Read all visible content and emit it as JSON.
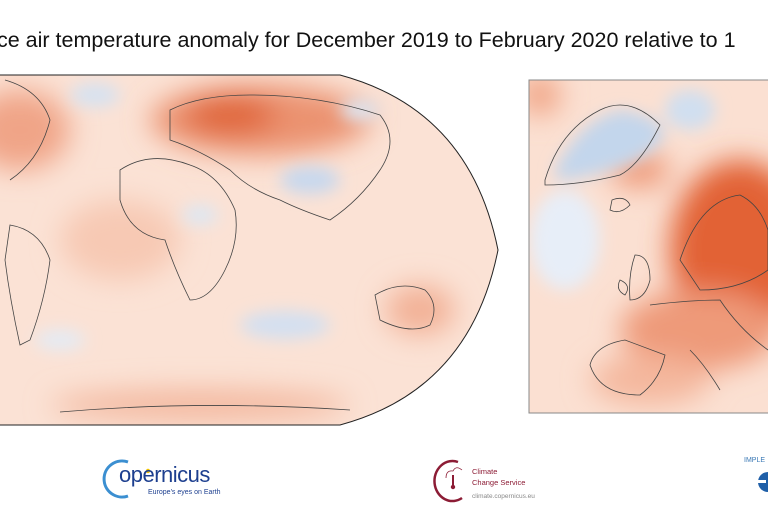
{
  "title": "ce air temperature anomaly for December 2019 to February 2020 relative to 1",
  "maps": {
    "global": {
      "projection": "robinson",
      "palette": {
        "warm": "#e05a2b",
        "cool": "#3f7ec2",
        "neutral": "#fdf3ee"
      }
    },
    "europe": {
      "palette": {
        "warm": "#e05a2b",
        "cool": "#3f7ec2"
      }
    }
  },
  "logos": {
    "copernicus": {
      "word": "opernicus",
      "tagline": "Europe's eyes on Earth",
      "color": "#1d3f8f"
    },
    "c3s": {
      "line1": "Climate",
      "line2": "Change Service",
      "url": "climate.copernicus.eu",
      "color": "#8c1c35"
    },
    "implemented_by": {
      "text": "IMPLE"
    }
  }
}
